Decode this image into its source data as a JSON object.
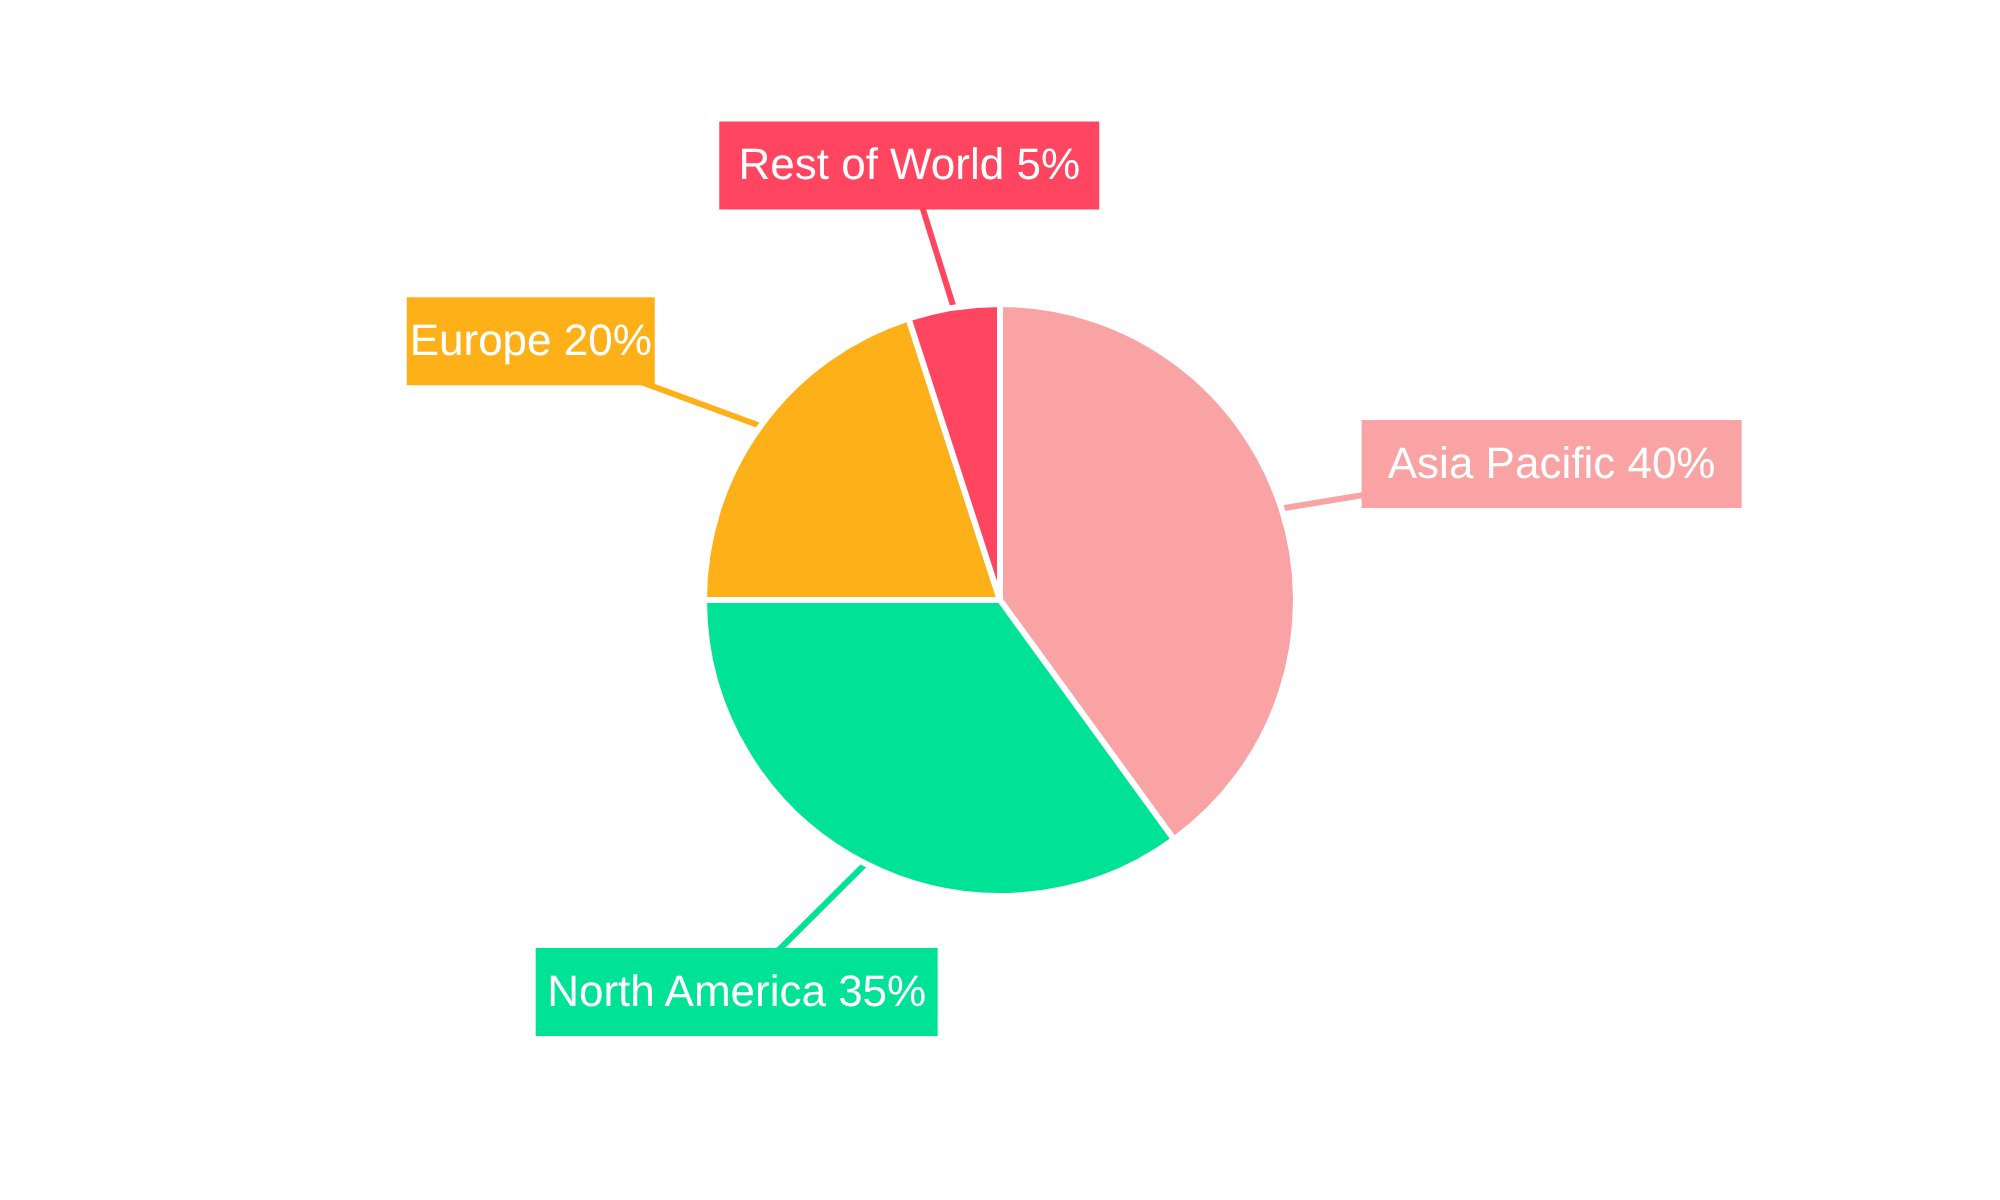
{
  "chart_data": {
    "type": "pie",
    "categories": [
      "Asia Pacific",
      "North America",
      "Europe",
      "Rest of World"
    ],
    "values": [
      40,
      35,
      20,
      5
    ],
    "value_labels": [
      "40%",
      "35%",
      "20%",
      "5%"
    ],
    "colors": [
      "#f9a3a4",
      "#00e396",
      "#feb019",
      "#ff4560"
    ]
  }
}
